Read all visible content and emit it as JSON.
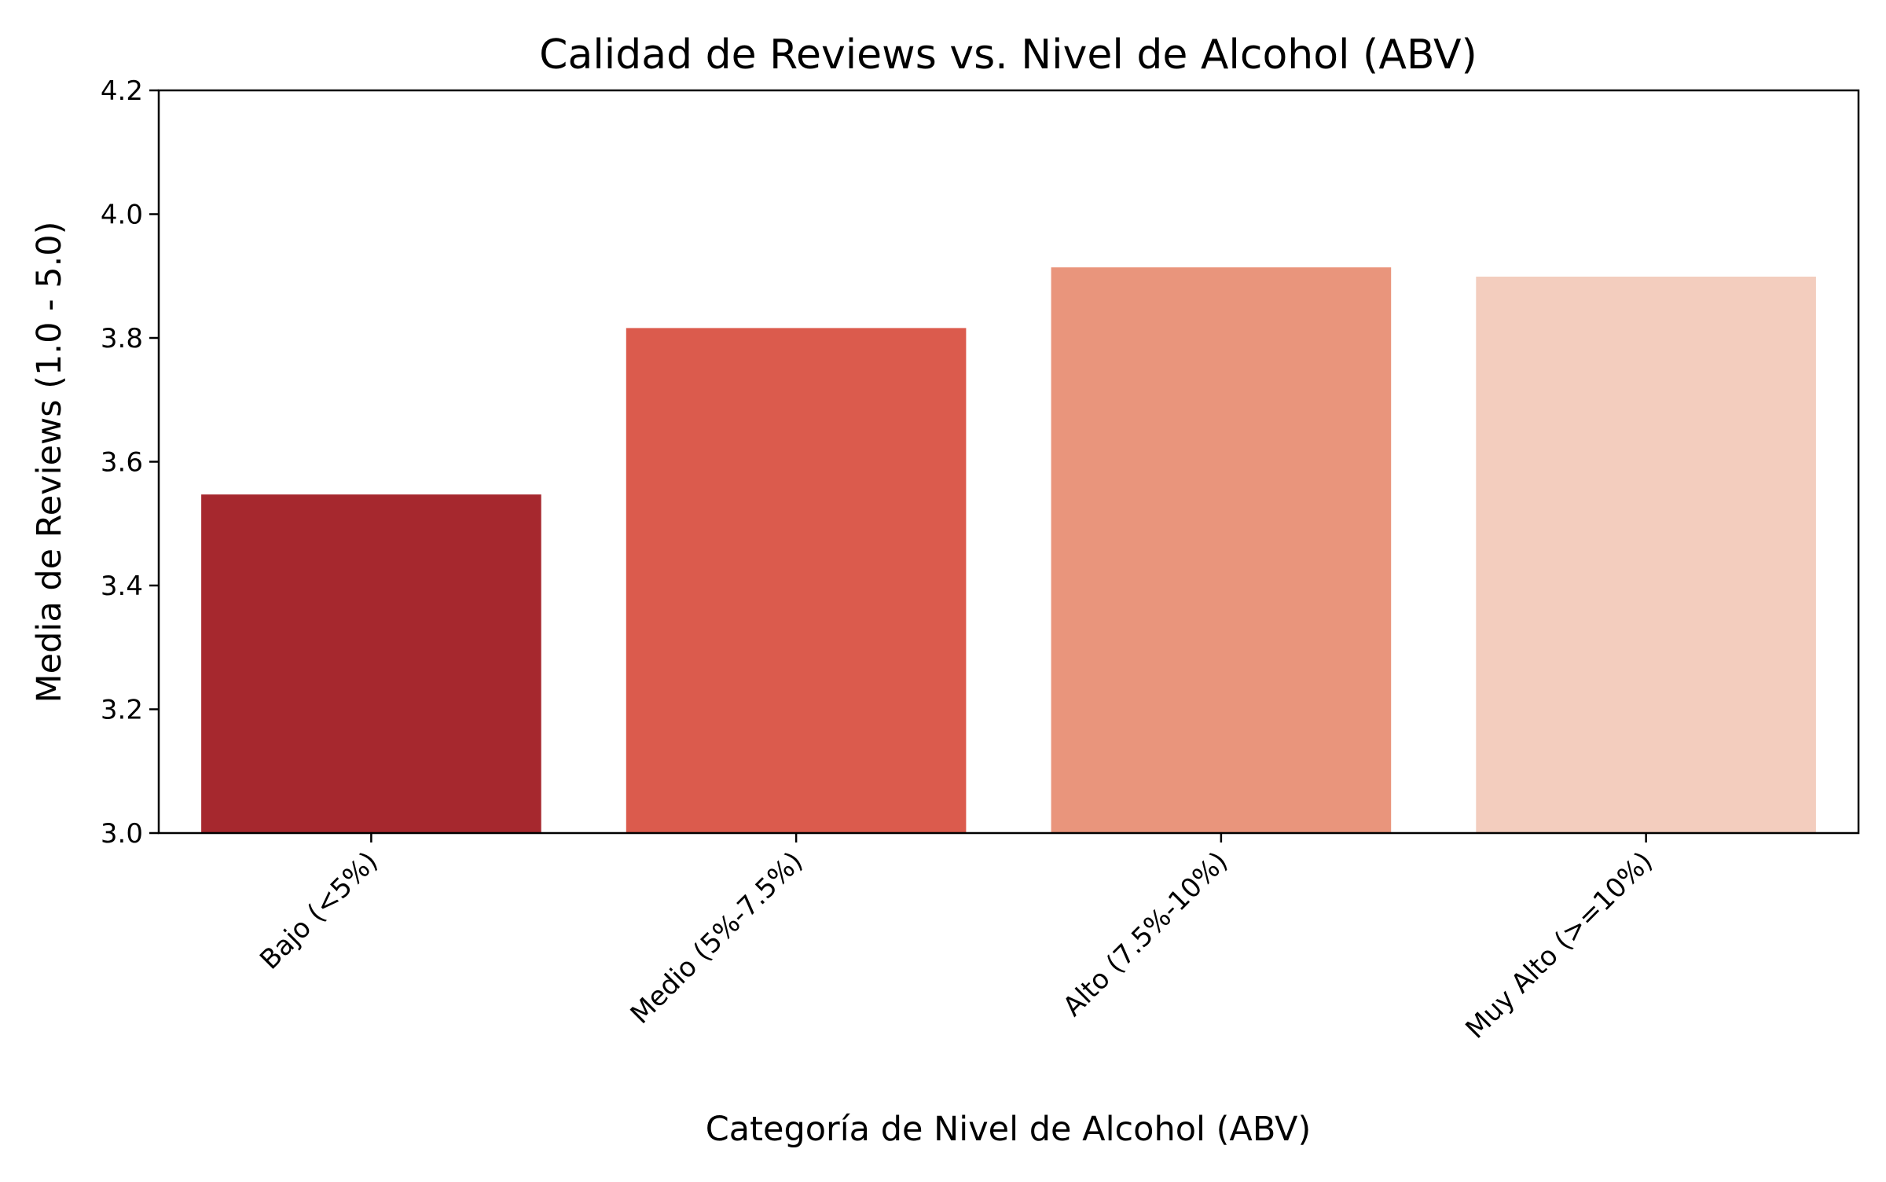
{
  "chart_data": {
    "type": "bar",
    "title": "Calidad de Reviews vs. Nivel de Alcohol (ABV)",
    "xlabel": "Categoría de Nivel de Alcohol (ABV)",
    "ylabel": "Media de Reviews (1.0 - 5.0)",
    "categories": [
      "Bajo (<5%)",
      "Medio (5%-7.5%)",
      "Alto (7.5%-10%)",
      "Muy Alto (>=10%)"
    ],
    "values": [
      3.547,
      3.816,
      3.914,
      3.899
    ],
    "colors": [
      "#a6282e",
      "#db5b4d",
      "#e9957c",
      "#f3cdbe"
    ],
    "ylim": [
      3.0,
      4.2
    ],
    "yticks": [
      "3.0",
      "3.2",
      "3.4",
      "3.6",
      "3.8",
      "4.0",
      "4.2"
    ],
    "grid": false,
    "legend": "none"
  }
}
